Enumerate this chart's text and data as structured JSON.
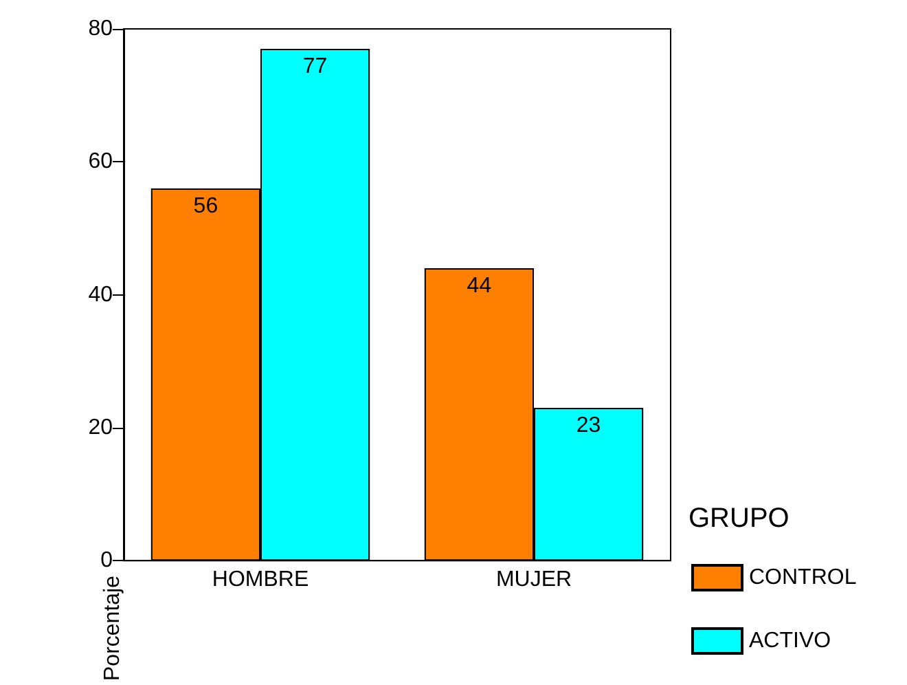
{
  "chart_data": {
    "type": "bar",
    "ylabel": "Porcentaje",
    "legend_title": "GRUPO",
    "categories": [
      "HOMBRE",
      "MUJER"
    ],
    "series": [
      {
        "name": "CONTROL",
        "color": "#ff8000",
        "values": [
          56,
          44
        ]
      },
      {
        "name": "ACTIVO",
        "color": "#00ffff",
        "values": [
          77,
          23
        ]
      }
    ],
    "ylim": [
      0,
      80
    ],
    "yticks": [
      0,
      20,
      40,
      60,
      80
    ],
    "data_labels": true,
    "legend": "right",
    "grid": false
  }
}
